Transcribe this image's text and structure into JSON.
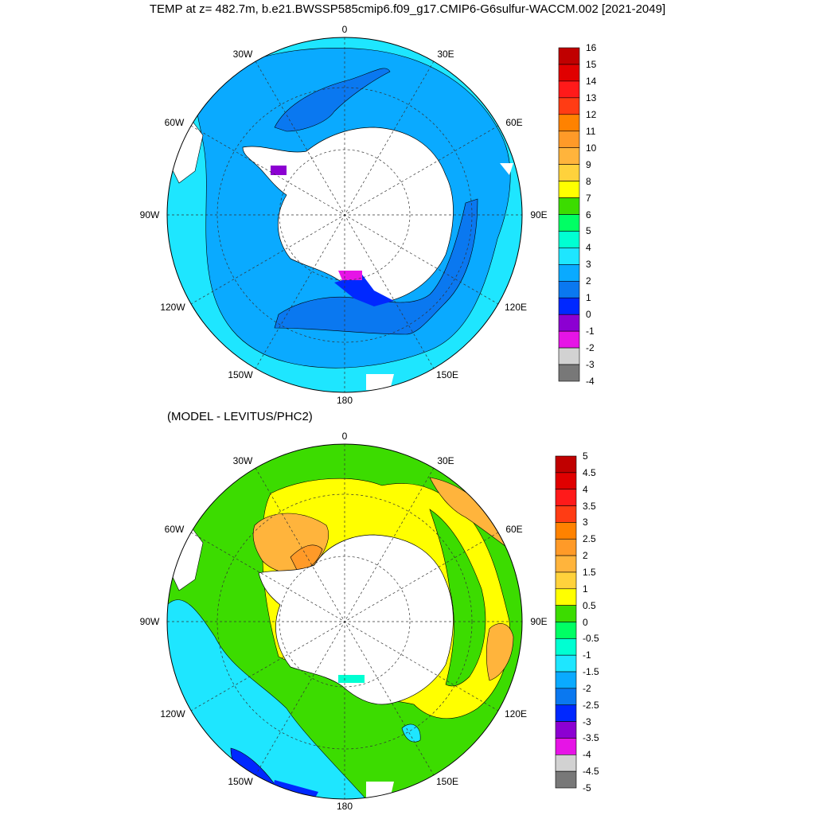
{
  "title": "TEMP at z= 482.7m, b.e21.BWSSP585cmip6.f09_g17.CMIP6-G6sulfur-WACCM.002 [2021-2049]",
  "subtitle": "(MODEL - LEVITUS/PHC2)",
  "longitude_labels": [
    "0",
    "30E",
    "60E",
    "90E",
    "120E",
    "150E",
    "180",
    "150W",
    "120W",
    "90W",
    "60W",
    "30W"
  ],
  "top_colorbar": {
    "labels": [
      "16",
      "15",
      "14",
      "13",
      "12",
      "11",
      "10",
      "9",
      "8",
      "7",
      "6",
      "5",
      "4",
      "3",
      "2",
      "1",
      "0",
      "-1",
      "-2",
      "-3",
      "-4"
    ],
    "colors": [
      "#c00000",
      "#e00000",
      "#ff1a1a",
      "#ff3c14",
      "#ff8200",
      "#ff9a28",
      "#ffb43c",
      "#ffd23c",
      "#ffff00",
      "#3cdc00",
      "#00ff64",
      "#00ffd2",
      "#1ee6ff",
      "#0aaaff",
      "#0a78f0",
      "#0028ff",
      "#8c00d2",
      "#e614e6",
      "#d2d2d2",
      "#787878"
    ]
  },
  "bottom_colorbar": {
    "labels": [
      "5",
      "4.5",
      "4",
      "3.5",
      "3",
      "2.5",
      "2",
      "1.5",
      "1",
      "0.5",
      "0",
      "-0.5",
      "-1",
      "-1.5",
      "-2",
      "-2.5",
      "-3",
      "-3.5",
      "-4",
      "-4.5",
      "-5"
    ],
    "colors": [
      "#c00000",
      "#e00000",
      "#ff1a1a",
      "#ff3c14",
      "#ff8200",
      "#ff9a28",
      "#ffb43c",
      "#ffd23c",
      "#ffff00",
      "#3cdc00",
      "#00ff64",
      "#00ffd2",
      "#1ee6ff",
      "#0aaaff",
      "#0a78f0",
      "#0028ff",
      "#8c00d2",
      "#e614e6",
      "#d2d2d2",
      "#787878"
    ]
  },
  "colors": {
    "land": "#ffffff",
    "top_ocean_main": "#0aaaff",
    "top_ocean_light": "#1ee6ff",
    "top_ocean_deep": "#0a78f0",
    "bottom_green": "#3cdc00",
    "bottom_yellow": "#ffff00",
    "bottom_orange": "#ffb43c",
    "bottom_cyan": "#1ee6ff",
    "bottom_blue": "#0028ff"
  }
}
